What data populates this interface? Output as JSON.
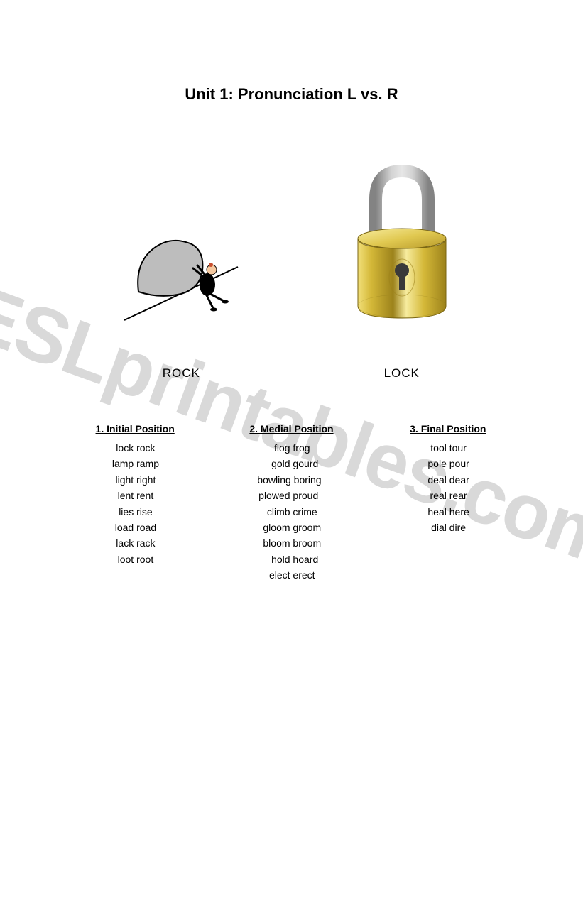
{
  "title": "Unit 1: Pronunciation L vs. R",
  "watermark": "ESLprintables.com",
  "images": {
    "rock": {
      "label": "ROCK"
    },
    "lock": {
      "label": "LOCK"
    }
  },
  "columns": [
    {
      "number": "1.",
      "heading": "Initial Position",
      "pairs": [
        {
          "l": "lock",
          "r": "rock"
        },
        {
          "l": "lamp",
          "r": "ramp"
        },
        {
          "l": "light",
          "r": "right"
        },
        {
          "l": "lent",
          "r": "rent"
        },
        {
          "l": "lies",
          "r": "rise"
        },
        {
          "l": "load",
          "r": "road"
        },
        {
          "l": "lack",
          "r": "rack"
        },
        {
          "l": "loot",
          "r": "root"
        }
      ]
    },
    {
      "number": "2.",
      "heading": "Medial Position",
      "pairs": [
        {
          "l": "flog",
          "r": "frog"
        },
        {
          "l": "gold",
          "r": "gourd"
        },
        {
          "l": "bowling",
          "r": "boring"
        },
        {
          "l": "plowed",
          "r": "proud"
        },
        {
          "l": "climb",
          "r": "crime"
        },
        {
          "l": "gloom",
          "r": "groom"
        },
        {
          "l": "bloom",
          "r": "broom"
        },
        {
          "l": "hold",
          "r": "hoard"
        },
        {
          "l": "elect",
          "r": "erect"
        }
      ]
    },
    {
      "number": "3.",
      "heading": "Final Position",
      "pairs": [
        {
          "l": "tool",
          "r": "tour"
        },
        {
          "l": "pole",
          "r": "pour"
        },
        {
          "l": "deal",
          "r": "dear"
        },
        {
          "l": "real",
          "r": "rear"
        },
        {
          "l": "heal",
          "r": "here"
        },
        {
          "l": "dial",
          "r": "dire"
        }
      ]
    }
  ],
  "colors": {
    "text": "#000000",
    "background": "#ffffff",
    "watermark": "#d9d9d9",
    "lock_body": "#d4b838",
    "lock_highlight": "#f2e07a",
    "lock_shadow": "#9c821b",
    "shackle": "#c0c0c0",
    "rock_fill": "#bdbdbd",
    "rock_outline": "#000000"
  }
}
